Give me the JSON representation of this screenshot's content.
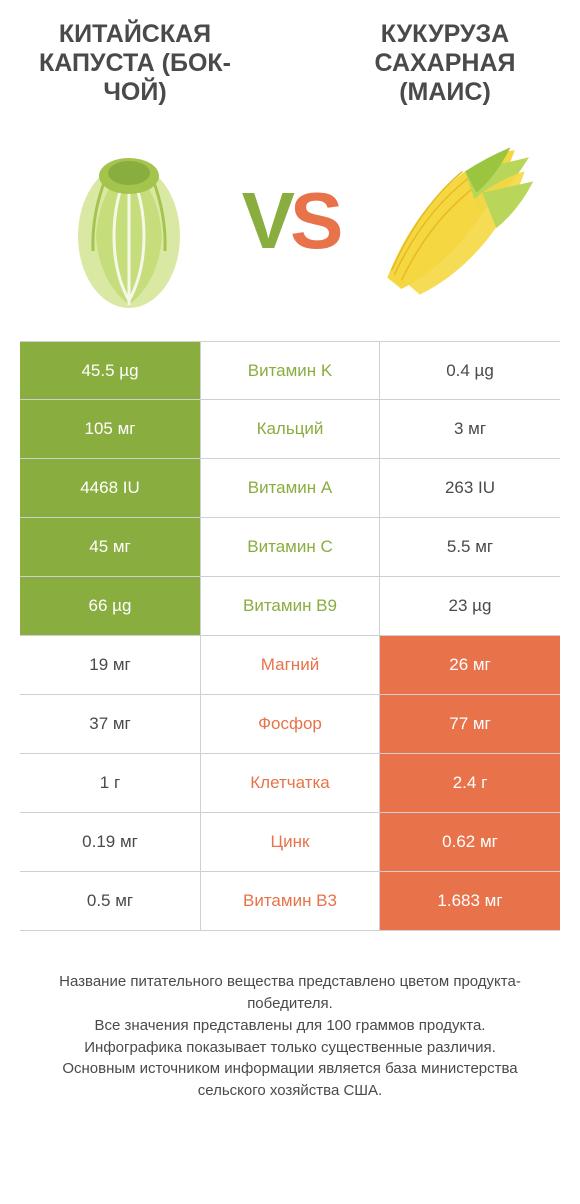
{
  "header": {
    "left_title": "КИТАЙСКАЯ КАПУСТА (БОК-ЧОЙ)",
    "right_title": "КУКУРУЗА САХАРНАЯ (МАИС)"
  },
  "vs": {
    "v": "V",
    "s": "S"
  },
  "colors": {
    "green": "#8aad3f",
    "orange": "#e8724a",
    "text": "#4a4a4a",
    "border": "#d0d0d0",
    "bg": "#ffffff"
  },
  "rows": [
    {
      "label": "Витамин K",
      "left": "45.5 µg",
      "right": "0.4 µg",
      "winner": "left"
    },
    {
      "label": "Кальций",
      "left": "105 мг",
      "right": "3 мг",
      "winner": "left"
    },
    {
      "label": "Витамин A",
      "left": "4468 IU",
      "right": "263 IU",
      "winner": "left"
    },
    {
      "label": "Витамин C",
      "left": "45 мг",
      "right": "5.5 мг",
      "winner": "left"
    },
    {
      "label": "Витамин B9",
      "left": "66 µg",
      "right": "23 µg",
      "winner": "left"
    },
    {
      "label": "Магний",
      "left": "19 мг",
      "right": "26 мг",
      "winner": "right"
    },
    {
      "label": "Фосфор",
      "left": "37 мг",
      "right": "77 мг",
      "winner": "right"
    },
    {
      "label": "Клетчатка",
      "left": "1 г",
      "right": "2.4 г",
      "winner": "right"
    },
    {
      "label": "Цинк",
      "left": "0.19 мг",
      "right": "0.62 мг",
      "winner": "right"
    },
    {
      "label": "Витамин B3",
      "left": "0.5 мг",
      "right": "1.683 мг",
      "winner": "right"
    }
  ],
  "footer": {
    "line1": "Название питательного вещества представлено цветом продукта-победителя.",
    "line2": "Все значения представлены для 100 граммов продукта.",
    "line3": "Инфографика показывает только существенные различия.",
    "line4": "Основным источником информации является база министерства сельского хозяйства США."
  }
}
